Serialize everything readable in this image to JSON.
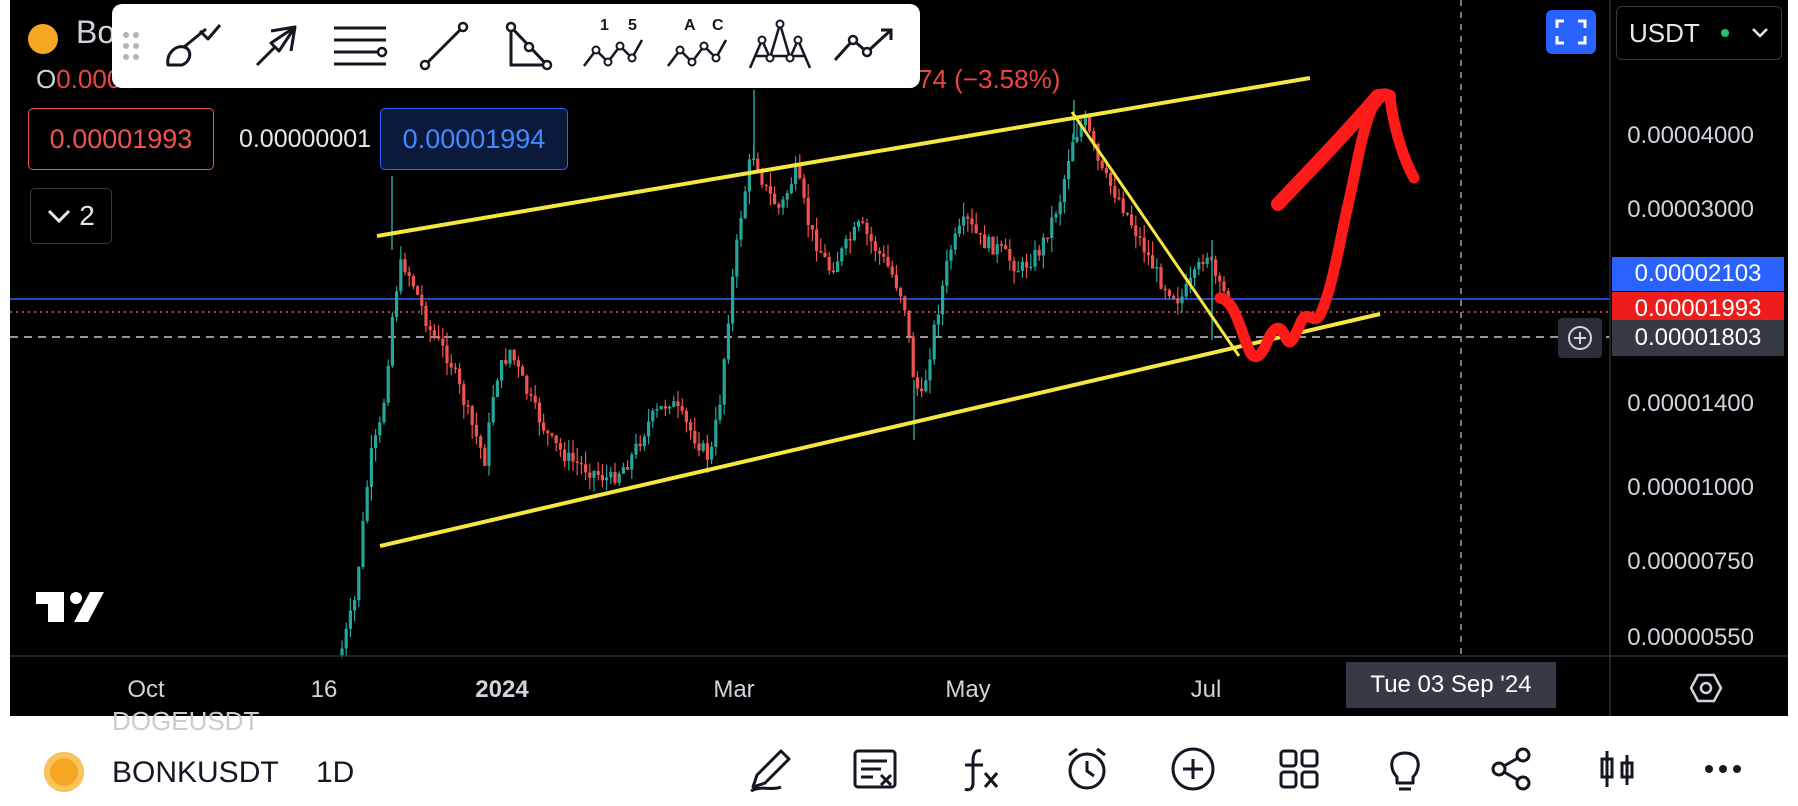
{
  "header": {
    "symbol_partial": "Bo",
    "ohlc_open_letter": "O",
    "ohlc_change": "74 (−3.58%)",
    "ohlc_open_value": "0.0000"
  },
  "drawing_toolbar": {
    "tools": [
      "brush-icon",
      "arrow-icon",
      "lines-icon",
      "trend-line-icon",
      "triangle-icon",
      "elliott-1-5-icon",
      "abc-pattern-icon",
      "head-shoulders-icon",
      "path-icon"
    ],
    "elliott_labels": [
      "1",
      "5"
    ],
    "abc_labels": [
      "A",
      "C"
    ]
  },
  "order_panel": {
    "sell_price": "0.00001993",
    "spread": "0.00000001",
    "buy_price": "0.00001994",
    "indicator_toggle_count": "2"
  },
  "top_right": {
    "currency": "USDT"
  },
  "price_axis": {
    "ticks": [
      "0.00004000",
      "0.00003000",
      "0.00001400",
      "0.00001000",
      "0.00000750",
      "0.00000550"
    ],
    "tag_blue": "0.00002103",
    "tag_red": "0.00001993",
    "tag_crosshair": "0.00001803"
  },
  "time_axis": {
    "ticks": [
      "Oct",
      "16",
      "2024",
      "Mar",
      "May",
      "Jul"
    ],
    "crosshair_date": "Tue 03 Sep '24"
  },
  "bottom_bar": {
    "symbol": "BONKUSDT",
    "interval": "1D",
    "behind_text": "DOGEUSDT"
  },
  "colors": {
    "up": "#26a69a",
    "down": "#ef5350",
    "trend": "#f5e642",
    "annotation": "#ff1a1a",
    "blue_line": "#2962ff"
  }
}
